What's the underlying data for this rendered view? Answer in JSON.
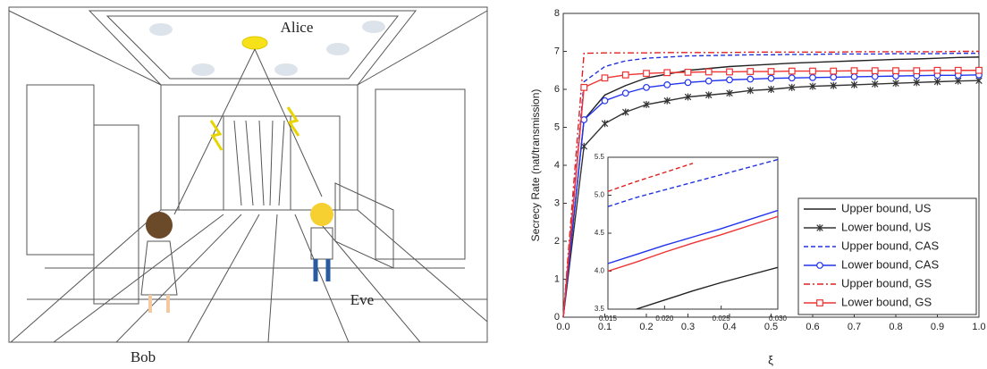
{
  "illustration": {
    "labels": {
      "transmitter": "Alice",
      "receiver": "Bob",
      "eavesdropper": "Eve"
    }
  },
  "chart_data": [
    {
      "type": "line",
      "xlabel": "ξ",
      "ylabel": "Secrecy Rate (nat/transmission)",
      "xlim": [
        0,
        1
      ],
      "ylim": [
        0,
        8
      ],
      "xticks": [
        {
          "value": 0,
          "label": "0.0"
        },
        0.1,
        0.2,
        0.3,
        0.4,
        0.5,
        0.6,
        0.7,
        0.8,
        0.9,
        {
          "value": 1,
          "label": "1.0"
        }
      ],
      "yticks": [
        0,
        1,
        2,
        3,
        4,
        5,
        6,
        7,
        8
      ],
      "legend": "lower right",
      "x": [
        0,
        0.05,
        0.1,
        0.15,
        0.2,
        0.25,
        0.3,
        0.35,
        0.4,
        0.45,
        0.5,
        0.55,
        0.6,
        0.65,
        0.7,
        0.75,
        0.8,
        0.85,
        0.9,
        0.95,
        1
      ],
      "series": [
        {
          "name": "Upper bound, US",
          "color": "#222222",
          "dash": "solid",
          "marker": null,
          "values": [
            0,
            5.2,
            5.85,
            6.1,
            6.3,
            6.4,
            6.5,
            6.55,
            6.6,
            6.63,
            6.66,
            6.69,
            6.71,
            6.73,
            6.75,
            6.77,
            6.79,
            6.8,
            6.82,
            6.84,
            6.85
          ]
        },
        {
          "name": "Lower bound, US",
          "color": "#333333",
          "dash": "solid",
          "marker": "x",
          "values": [
            0,
            4.5,
            5.1,
            5.4,
            5.6,
            5.7,
            5.8,
            5.85,
            5.9,
            5.97,
            6.0,
            6.05,
            6.08,
            6.1,
            6.12,
            6.14,
            6.16,
            6.18,
            6.2,
            6.22,
            6.23
          ]
        },
        {
          "name": "Upper bound, CAS",
          "color": "#2233dd",
          "dash": "dash",
          "marker": null,
          "values": [
            0,
            6.2,
            6.6,
            6.75,
            6.82,
            6.85,
            6.88,
            6.89,
            6.9,
            6.91,
            6.91,
            6.92,
            6.92,
            6.93,
            6.93,
            6.93,
            6.94,
            6.94,
            6.94,
            6.95,
            6.95
          ]
        },
        {
          "name": "Lower bound, CAS",
          "color": "#2233ee",
          "dash": "solid",
          "marker": "o",
          "values": [
            0,
            5.2,
            5.7,
            5.9,
            6.05,
            6.12,
            6.18,
            6.22,
            6.25,
            6.27,
            6.29,
            6.3,
            6.31,
            6.32,
            6.33,
            6.34,
            6.35,
            6.36,
            6.37,
            6.37,
            6.38
          ]
        },
        {
          "name": "Upper bound, GS",
          "color": "#e02020",
          "dash": "dashdot",
          "marker": null,
          "values": [
            0,
            6.95,
            6.96,
            6.96,
            6.96,
            6.97,
            6.97,
            6.97,
            6.97,
            6.98,
            6.98,
            6.98,
            6.98,
            6.98,
            6.99,
            6.99,
            6.99,
            6.99,
            6.99,
            7.0,
            7.0
          ]
        },
        {
          "name": "Lower bound, GS",
          "color": "#ee3333",
          "dash": "solid",
          "marker": "s",
          "values": [
            0,
            6.05,
            6.3,
            6.38,
            6.42,
            6.44,
            6.45,
            6.46,
            6.46,
            6.47,
            6.47,
            6.48,
            6.48,
            6.48,
            6.49,
            6.49,
            6.49,
            6.49,
            6.5,
            6.5,
            6.5
          ]
        }
      ]
    },
    {
      "type": "line",
      "xlim": [
        0.015,
        0.03
      ],
      "ylim": [
        3.5,
        5.5
      ],
      "xticks": [
        0.015,
        {
          "value": 0.02,
          "label": "0.020"
        },
        0.025,
        {
          "value": 0.03,
          "label": "0.030"
        }
      ],
      "yticks": [
        3.5,
        {
          "value": 4,
          "label": "4.0"
        },
        4.5,
        {
          "value": 5,
          "label": "5.0"
        },
        5.5
      ],
      "x": [
        0.015,
        0.0175,
        0.02,
        0.0225,
        0.025,
        0.0275,
        0.03
      ],
      "series": [
        {
          "color": "#222222",
          "dash": "solid",
          "values": [
            null,
            3.5,
            3.62,
            3.74,
            3.85,
            3.95,
            4.05
          ]
        },
        {
          "color": "#2233dd",
          "dash": "dash",
          "values": [
            4.85,
            4.97,
            5.07,
            5.17,
            5.27,
            5.37,
            5.47
          ]
        },
        {
          "color": "#2233ee",
          "dash": "solid",
          "values": [
            4.1,
            4.22,
            4.34,
            4.45,
            4.56,
            4.68,
            4.8
          ]
        },
        {
          "color": "#e02020",
          "dash": "dash",
          "values": [
            5.05,
            5.18,
            5.3,
            5.42,
            null,
            null,
            null
          ]
        },
        {
          "color": "#ee3333",
          "dash": "solid",
          "values": [
            4.0,
            4.12,
            4.25,
            4.37,
            4.48,
            4.6,
            4.72
          ]
        }
      ]
    }
  ]
}
